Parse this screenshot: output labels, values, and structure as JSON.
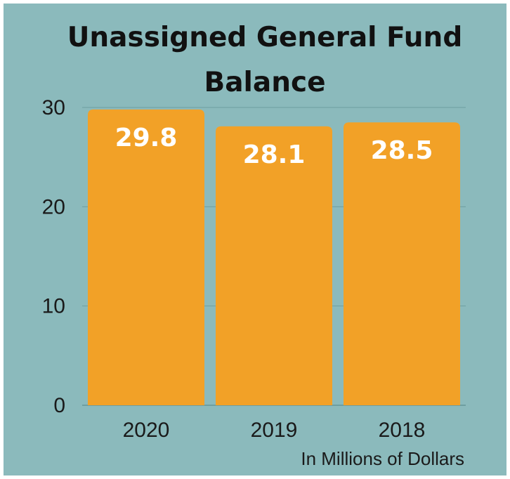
{
  "chart_data": {
    "type": "bar",
    "title": "Unassigned General Fund Balance",
    "title_lines": [
      "Unassigned General Fund",
      "Balance"
    ],
    "categories": [
      "2020",
      "2019",
      "2018"
    ],
    "values": [
      29.8,
      28.1,
      28.5
    ],
    "data_labels": [
      "29.8",
      "28.1",
      "28.5"
    ],
    "y_ticks": [
      "0",
      "10",
      "20",
      "30"
    ],
    "ylim": [
      0,
      30
    ],
    "unit_note": "In Millions of Dollars",
    "grid": true,
    "legend": "none",
    "colors": {
      "background": "#8bbabc",
      "bar": "#f2a127",
      "gridline": "#6e9fa1",
      "label": "#ffffff"
    }
  }
}
